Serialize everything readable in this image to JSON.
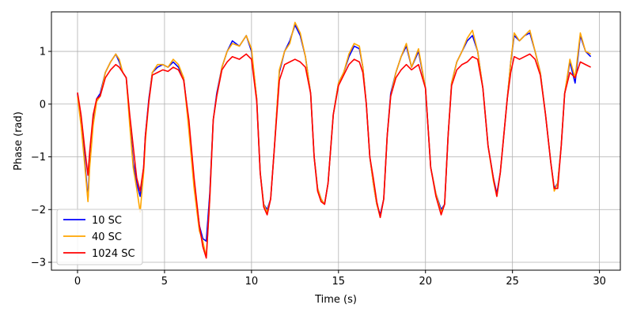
{
  "chart_data": {
    "type": "line",
    "title": "",
    "xlabel": "Time (s)",
    "ylabel": "Phase (rad)",
    "xlim": [
      -1.5,
      31.2
    ],
    "ylim": [
      -3.15,
      1.75
    ],
    "xticks": [
      0,
      5,
      10,
      15,
      20,
      25,
      30
    ],
    "xtick_labels": [
      "0",
      "5",
      "10",
      "15",
      "20",
      "25",
      "30"
    ],
    "yticks": [
      -3,
      -2,
      -1,
      0,
      1
    ],
    "ytick_labels": [
      "−3",
      "−2",
      "−1",
      "0",
      "1"
    ],
    "grid": true,
    "legend_position": "lower-left",
    "series": [
      {
        "name": "10 SC",
        "color": "#0000ff",
        "x": [
          0,
          0.2,
          0.4,
          0.6,
          0.7,
          0.9,
          1.1,
          1.3,
          1.6,
          1.9,
          2.2,
          2.4,
          2.6,
          2.8,
          3.0,
          3.2,
          3.4,
          3.6,
          3.8,
          3.9,
          4.1,
          4.3,
          4.6,
          4.9,
          5.2,
          5.5,
          5.8,
          6.1,
          6.4,
          6.7,
          7.0,
          7.2,
          7.4,
          7.6,
          7.8,
          8.0,
          8.3,
          8.6,
          8.9,
          9.3,
          9.7,
          10.0,
          10.3,
          10.5,
          10.7,
          10.9,
          11.1,
          11.3,
          11.6,
          11.9,
          12.2,
          12.5,
          12.8,
          13.1,
          13.4,
          13.6,
          13.8,
          14.0,
          14.2,
          14.4,
          14.7,
          15.0,
          15.3,
          15.6,
          15.9,
          16.2,
          16.4,
          16.6,
          16.8,
          17.0,
          17.2,
          17.4,
          17.6,
          17.8,
          18.0,
          18.3,
          18.6,
          18.9,
          19.2,
          19.6,
          20.0,
          20.3,
          20.6,
          20.9,
          21.1,
          21.3,
          21.5,
          21.8,
          22.1,
          22.4,
          22.7,
          23.0,
          23.3,
          23.6,
          23.9,
          24.1,
          24.3,
          24.5,
          24.7,
          24.9,
          25.1,
          25.4,
          25.7,
          26.0,
          26.3,
          26.6,
          26.9,
          27.2,
          27.4,
          27.6,
          27.8,
          28.0,
          28.3,
          28.6,
          28.9,
          29.2,
          29.5
        ],
        "values": [
          0.2,
          -0.3,
          -1.0,
          -1.8,
          -1.1,
          -0.3,
          0.1,
          0.2,
          0.6,
          0.8,
          0.95,
          0.8,
          0.6,
          0.5,
          -0.3,
          -1.1,
          -1.5,
          -1.75,
          -1.2,
          -0.6,
          0.1,
          0.6,
          0.7,
          0.75,
          0.7,
          0.8,
          0.7,
          0.5,
          -0.4,
          -1.5,
          -2.3,
          -2.55,
          -2.6,
          -1.7,
          -0.3,
          0.2,
          0.7,
          1.0,
          1.2,
          1.1,
          1.3,
          1.0,
          0.1,
          -1.3,
          -1.9,
          -2.0,
          -1.8,
          -0.9,
          0.6,
          1.0,
          1.2,
          1.5,
          1.3,
          0.9,
          0.2,
          -1.0,
          -1.6,
          -1.8,
          -1.9,
          -1.5,
          -0.2,
          0.4,
          0.6,
          0.9,
          1.1,
          1.05,
          0.7,
          0.0,
          -1.0,
          -1.5,
          -1.9,
          -2.1,
          -1.8,
          -0.6,
          0.2,
          0.6,
          0.9,
          1.1,
          0.7,
          1.0,
          0.3,
          -1.2,
          -1.7,
          -2.0,
          -1.9,
          -0.6,
          0.4,
          0.8,
          1.0,
          1.2,
          1.3,
          1.0,
          0.3,
          -0.8,
          -1.4,
          -1.7,
          -1.3,
          -0.6,
          0.1,
          0.8,
          1.3,
          1.2,
          1.3,
          1.35,
          1.0,
          0.6,
          -0.2,
          -1.1,
          -1.6,
          -1.5,
          -0.8,
          0.2,
          0.8,
          0.4,
          1.3,
          1.0,
          0.9
        ]
      },
      {
        "name": "40 SC",
        "color": "#ffa500",
        "x": [
          0,
          0.2,
          0.4,
          0.6,
          0.7,
          0.9,
          1.1,
          1.3,
          1.6,
          1.9,
          2.2,
          2.4,
          2.6,
          2.8,
          3.0,
          3.2,
          3.4,
          3.6,
          3.8,
          3.9,
          4.1,
          4.3,
          4.6,
          4.9,
          5.2,
          5.5,
          5.8,
          6.1,
          6.4,
          6.7,
          7.0,
          7.2,
          7.4,
          7.6,
          7.8,
          8.0,
          8.3,
          8.6,
          8.9,
          9.3,
          9.7,
          10.0,
          10.3,
          10.5,
          10.7,
          10.9,
          11.1,
          11.3,
          11.6,
          11.9,
          12.2,
          12.5,
          12.8,
          13.1,
          13.4,
          13.6,
          13.8,
          14.0,
          14.2,
          14.4,
          14.7,
          15.0,
          15.3,
          15.6,
          15.9,
          16.2,
          16.4,
          16.6,
          16.8,
          17.0,
          17.2,
          17.4,
          17.6,
          17.8,
          18.0,
          18.3,
          18.6,
          18.9,
          19.2,
          19.6,
          20.0,
          20.3,
          20.6,
          20.9,
          21.1,
          21.3,
          21.5,
          21.8,
          22.1,
          22.4,
          22.7,
          23.0,
          23.3,
          23.6,
          23.9,
          24.1,
          24.3,
          24.5,
          24.7,
          24.9,
          25.1,
          25.4,
          25.7,
          26.0,
          26.3,
          26.6,
          26.9,
          27.2,
          27.4,
          27.6,
          27.8,
          28.0,
          28.3,
          28.6,
          28.9,
          29.2,
          29.5
        ],
        "values": [
          0.15,
          -0.4,
          -1.1,
          -1.85,
          -1.2,
          -0.4,
          0.05,
          0.15,
          0.6,
          0.8,
          0.95,
          0.85,
          0.6,
          0.5,
          -0.4,
          -1.2,
          -1.6,
          -2.05,
          -1.3,
          -0.7,
          0.05,
          0.6,
          0.75,
          0.75,
          0.7,
          0.85,
          0.75,
          0.5,
          -0.5,
          -1.6,
          -2.4,
          -2.6,
          -2.9,
          -1.8,
          -0.3,
          0.15,
          0.7,
          1.0,
          1.15,
          1.1,
          1.3,
          1.05,
          0.1,
          -1.3,
          -1.9,
          -2.05,
          -1.8,
          -0.9,
          0.65,
          1.0,
          1.15,
          1.55,
          1.35,
          0.9,
          0.2,
          -1.0,
          -1.6,
          -1.8,
          -1.9,
          -1.5,
          -0.2,
          0.4,
          0.6,
          0.95,
          1.15,
          1.1,
          0.7,
          0.0,
          -1.0,
          -1.5,
          -1.9,
          -2.15,
          -1.8,
          -0.6,
          0.15,
          0.6,
          0.9,
          1.15,
          0.7,
          1.05,
          0.3,
          -1.2,
          -1.7,
          -2.05,
          -1.9,
          -0.6,
          0.4,
          0.8,
          1.0,
          1.25,
          1.4,
          1.0,
          0.3,
          -0.8,
          -1.45,
          -1.75,
          -1.3,
          -0.6,
          0.1,
          0.8,
          1.35,
          1.2,
          1.3,
          1.4,
          1.0,
          0.6,
          -0.2,
          -1.1,
          -1.65,
          -1.5,
          -0.8,
          0.2,
          0.85,
          0.5,
          1.35,
          1.0,
          0.95
        ]
      },
      {
        "name": "1024 SC",
        "color": "#ff0000",
        "x": [
          0,
          0.2,
          0.4,
          0.6,
          0.7,
          0.9,
          1.1,
          1.3,
          1.6,
          1.9,
          2.2,
          2.4,
          2.6,
          2.8,
          3.0,
          3.2,
          3.4,
          3.6,
          3.8,
          3.9,
          4.1,
          4.3,
          4.6,
          4.9,
          5.2,
          5.5,
          5.8,
          6.1,
          6.4,
          6.7,
          7.0,
          7.2,
          7.4,
          7.6,
          7.8,
          8.0,
          8.3,
          8.6,
          8.9,
          9.3,
          9.7,
          10.0,
          10.3,
          10.5,
          10.7,
          10.9,
          11.1,
          11.3,
          11.6,
          11.9,
          12.2,
          12.5,
          12.8,
          13.1,
          13.4,
          13.6,
          13.8,
          14.0,
          14.2,
          14.4,
          14.7,
          15.0,
          15.3,
          15.6,
          15.9,
          16.2,
          16.4,
          16.6,
          16.8,
          17.0,
          17.2,
          17.4,
          17.6,
          17.8,
          18.0,
          18.3,
          18.6,
          18.9,
          19.2,
          19.6,
          20.0,
          20.3,
          20.6,
          20.9,
          21.1,
          21.3,
          21.5,
          21.8,
          22.1,
          22.4,
          22.7,
          23.0,
          23.3,
          23.6,
          23.9,
          24.1,
          24.3,
          24.5,
          24.7,
          24.9,
          25.1,
          25.4,
          25.7,
          26.0,
          26.3,
          26.6,
          26.9,
          27.2,
          27.4,
          27.6,
          27.8,
          28.0,
          28.3,
          28.6,
          28.9,
          29.2,
          29.5
        ],
        "values": [
          0.22,
          -0.2,
          -0.8,
          -1.35,
          -0.9,
          -0.2,
          0.1,
          0.15,
          0.5,
          0.65,
          0.75,
          0.7,
          0.6,
          0.5,
          -0.2,
          -0.8,
          -1.4,
          -1.65,
          -1.2,
          -0.6,
          0.05,
          0.55,
          0.6,
          0.65,
          0.62,
          0.7,
          0.65,
          0.45,
          -0.3,
          -1.4,
          -2.3,
          -2.7,
          -2.92,
          -1.8,
          -0.3,
          0.15,
          0.65,
          0.8,
          0.9,
          0.85,
          0.95,
          0.85,
          0.05,
          -1.3,
          -1.95,
          -2.1,
          -1.8,
          -0.9,
          0.45,
          0.75,
          0.8,
          0.85,
          0.8,
          0.7,
          0.2,
          -1.0,
          -1.65,
          -1.85,
          -1.9,
          -1.5,
          -0.2,
          0.35,
          0.55,
          0.75,
          0.85,
          0.8,
          0.6,
          0.0,
          -1.0,
          -1.4,
          -1.85,
          -2.15,
          -1.8,
          -0.6,
          0.15,
          0.5,
          0.65,
          0.75,
          0.65,
          0.75,
          0.3,
          -1.2,
          -1.75,
          -2.1,
          -1.9,
          -0.6,
          0.35,
          0.65,
          0.75,
          0.8,
          0.9,
          0.85,
          0.3,
          -0.8,
          -1.4,
          -1.75,
          -1.3,
          -0.6,
          0.1,
          0.6,
          0.9,
          0.85,
          0.9,
          0.95,
          0.85,
          0.55,
          -0.2,
          -1.1,
          -1.6,
          -1.6,
          -0.8,
          0.2,
          0.6,
          0.5,
          0.8,
          0.75,
          0.7
        ]
      }
    ]
  }
}
